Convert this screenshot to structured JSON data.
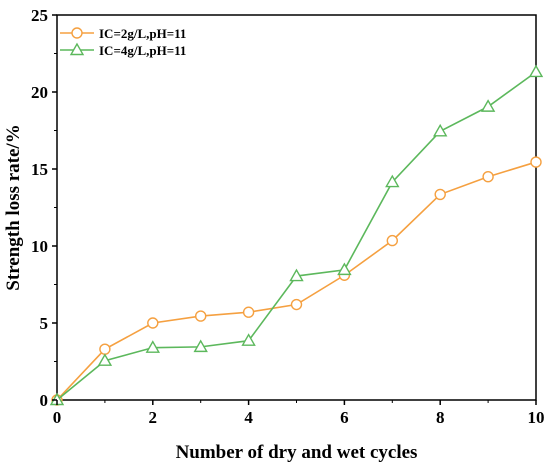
{
  "chart_data": {
    "type": "line",
    "title": "",
    "xlabel": "Number of dry and wet cycles",
    "ylabel": "Strength loss rate/%",
    "xlim": [
      0,
      10
    ],
    "ylim": [
      0,
      25
    ],
    "x_ticks": [
      "0",
      "2",
      "4",
      "6",
      "8",
      "10"
    ],
    "y_ticks": [
      "0",
      "5",
      "10",
      "15",
      "20",
      "25"
    ],
    "x_tick_values": [
      0,
      2,
      4,
      6,
      8,
      10
    ],
    "y_tick_values": [
      0,
      5,
      10,
      15,
      20,
      25
    ],
    "grid": false,
    "legend_position": "top-left",
    "x": [
      0,
      1,
      2,
      3,
      4,
      5,
      6,
      7,
      8,
      9,
      10
    ],
    "series": [
      {
        "name": "IC=2g/L,pH=11",
        "marker": "circle",
        "color": "#F5A040",
        "values": [
          0,
          3.3,
          5.0,
          5.45,
          5.7,
          6.2,
          8.1,
          10.35,
          13.35,
          14.5,
          15.45
        ]
      },
      {
        "name": "IC=4g/L,pH=11",
        "marker": "triangle",
        "color": "#5CB85C",
        "values": [
          0,
          2.55,
          3.4,
          3.45,
          3.85,
          8.05,
          8.45,
          14.15,
          17.45,
          19.05,
          21.3
        ]
      }
    ]
  }
}
